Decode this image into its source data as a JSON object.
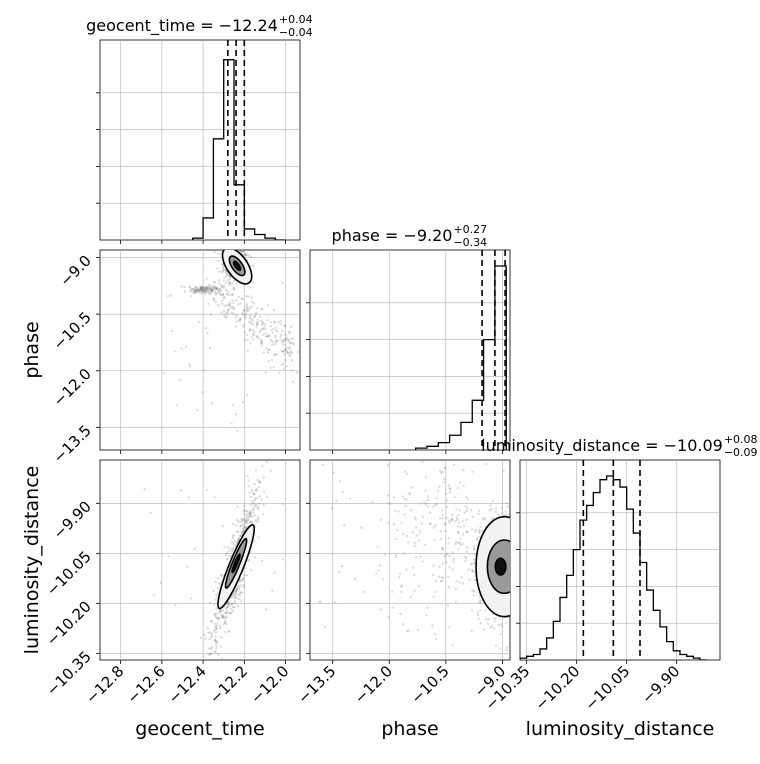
{
  "chart_data": {
    "type": "corner",
    "parameters": [
      "geocent_time",
      "phase",
      "luminosity_distance"
    ],
    "titles": [
      {
        "param": "geocent_time",
        "text": "geocent_time = −12.24",
        "plus": "+0.04",
        "minus": "−0.04"
      },
      {
        "param": "phase",
        "text": "phase = −9.20",
        "plus": "+0.27",
        "minus": "−0.34"
      },
      {
        "param": "luminosity_distance",
        "text": "luminosity_distance = −10.09",
        "plus": "+0.08",
        "minus": "−0.09"
      }
    ],
    "axis_labels": {
      "x": [
        "geocent_time",
        "phase",
        "luminosity_distance"
      ],
      "y": [
        "phase",
        "luminosity_distance"
      ]
    },
    "ranges": {
      "geocent_time": [
        -12.9,
        -11.93
      ],
      "phase": [
        -14.1,
        -8.8
      ],
      "luminosity_distance": [
        -10.37,
        -9.77
      ]
    },
    "ticks": {
      "geocent_time": {
        "values": [
          -12.8,
          -12.6,
          -12.4,
          -12.2,
          -12.0
        ],
        "labels": [
          "−12.8",
          "−12.6",
          "−12.4",
          "−12.2",
          "−12.0"
        ]
      },
      "phase": {
        "values": [
          -13.5,
          -12.0,
          -10.5,
          -9.0
        ],
        "labels": [
          "−13.5",
          "−12.0",
          "−10.5",
          "−9.0"
        ]
      },
      "luminosity_distance": {
        "values": [
          -10.35,
          -10.2,
          -10.05,
          -9.9
        ],
        "labels": [
          "−10.35",
          "−10.20",
          "−10.05",
          "−9.90"
        ]
      }
    },
    "quantiles": {
      "geocent_time": [
        -12.28,
        -12.24,
        -12.2
      ],
      "phase": [
        -9.54,
        -9.2,
        -8.93
      ],
      "luminosity_distance": [
        -10.18,
        -10.09,
        -10.01
      ]
    },
    "histograms": {
      "geocent_time": {
        "edges": [
          -12.45,
          -12.4,
          -12.35,
          -12.3,
          -12.25,
          -12.2,
          -12.15,
          -12.1,
          -12.05,
          -12.0
        ],
        "counts": [
          0.01,
          0.12,
          0.55,
          0.98,
          0.3,
          0.06,
          0.03,
          0.01,
          0.0
        ]
      },
      "phase": {
        "edges": [
          -11.3,
          -11.0,
          -10.7,
          -10.4,
          -10.1,
          -9.8,
          -9.5,
          -9.2,
          -8.9
        ],
        "counts": [
          0.01,
          0.02,
          0.04,
          0.08,
          0.15,
          0.27,
          0.6,
          1.0
        ]
      },
      "luminosity_distance": {
        "edges": [
          -10.37,
          -10.35,
          -10.33,
          -10.31,
          -10.29,
          -10.27,
          -10.25,
          -10.23,
          -10.21,
          -10.19,
          -10.17,
          -10.15,
          -10.13,
          -10.11,
          -10.09,
          -10.07,
          -10.05,
          -10.03,
          -10.01,
          -9.99,
          -9.97,
          -9.95,
          -9.93,
          -9.91,
          -9.89,
          -9.87,
          -9.85,
          -9.83,
          -9.81
        ],
        "counts": [
          0.01,
          0.02,
          0.03,
          0.06,
          0.12,
          0.21,
          0.34,
          0.46,
          0.6,
          0.76,
          0.84,
          0.91,
          0.98,
          1.0,
          0.98,
          0.94,
          0.82,
          0.69,
          0.53,
          0.38,
          0.27,
          0.18,
          0.1,
          0.05,
          0.03,
          0.02,
          0.01,
          0.0
        ]
      }
    },
    "grid": true,
    "colors": {
      "line": "#000000",
      "grid": "#b0b0b0",
      "points": "#808080",
      "density": [
        "#f0f0f0",
        "#b0b0b0",
        "#606060",
        "#101010"
      ]
    }
  }
}
